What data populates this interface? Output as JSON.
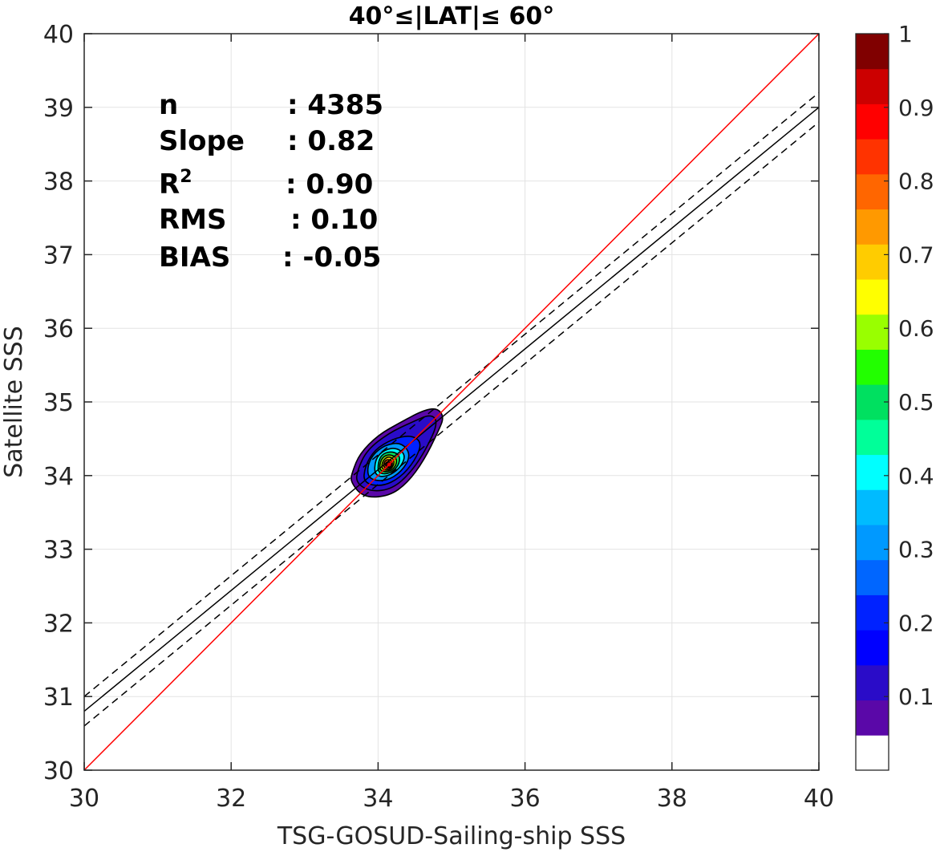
{
  "chart_data": {
    "type": "contour",
    "title": "40°≤|LAT|≤ 60°",
    "xlabel": "TSG-GOSUD-Sailing-ship SSS",
    "ylabel": "Satellite SSS",
    "xlim": [
      30,
      40
    ],
    "ylim": [
      30,
      40
    ],
    "xticks": [
      "30",
      "32",
      "34",
      "36",
      "38",
      "40"
    ],
    "yticks": [
      "30",
      "31",
      "32",
      "33",
      "34",
      "35",
      "36",
      "37",
      "38",
      "39",
      "40"
    ],
    "grid": true,
    "stats": [
      {
        "label": "n",
        "value": ": 4385"
      },
      {
        "label": "Slope",
        "value": ": 0.82"
      },
      {
        "label": "R",
        "sup": "2",
        "value": ": 0.90"
      },
      {
        "label": "RMS",
        "value": ": 0.10"
      },
      {
        "label": "BIAS",
        "value": ": -0.05"
      }
    ],
    "lines": {
      "identity": {
        "x": [
          30,
          40
        ],
        "y": [
          30,
          40
        ],
        "color": "#ff0000"
      },
      "fit": {
        "x": [
          30,
          40
        ],
        "y": [
          30.8,
          39.0
        ],
        "color": "#000000"
      },
      "fit_upper": {
        "x": [
          30,
          40
        ],
        "y": [
          31.0,
          39.2
        ],
        "color": "#000000",
        "dash": true
      },
      "fit_lower": {
        "x": [
          30,
          40
        ],
        "y": [
          30.6,
          38.8
        ],
        "color": "#000000",
        "dash": true
      }
    },
    "density_peak": {
      "x": 34.15,
      "y": 34.15
    },
    "contours": [
      {
        "level": 0.05,
        "points": [
          [
            33.62,
            33.92
          ],
          [
            33.8,
            33.7
          ],
          [
            34.15,
            33.72
          ],
          [
            34.4,
            33.9
          ],
          [
            34.62,
            34.2
          ],
          [
            34.82,
            34.6
          ],
          [
            34.9,
            34.8
          ],
          [
            34.8,
            34.92
          ],
          [
            34.6,
            34.88
          ],
          [
            34.3,
            34.72
          ],
          [
            34.0,
            34.55
          ],
          [
            33.75,
            34.3
          ],
          [
            33.65,
            34.05
          ]
        ]
      },
      {
        "level": 0.1,
        "points": [
          [
            33.7,
            33.9
          ],
          [
            33.9,
            33.78
          ],
          [
            34.2,
            33.82
          ],
          [
            34.45,
            34.05
          ],
          [
            34.65,
            34.35
          ],
          [
            34.82,
            34.72
          ],
          [
            34.72,
            34.84
          ],
          [
            34.45,
            34.72
          ],
          [
            34.15,
            34.58
          ],
          [
            33.85,
            34.35
          ],
          [
            33.72,
            34.08
          ]
        ]
      },
      {
        "level": 0.2,
        "points": [
          [
            33.8,
            33.9
          ],
          [
            34.05,
            33.85
          ],
          [
            34.3,
            33.97
          ],
          [
            34.5,
            34.2
          ],
          [
            34.6,
            34.45
          ],
          [
            34.45,
            34.55
          ],
          [
            34.2,
            34.5
          ],
          [
            33.95,
            34.35
          ],
          [
            33.82,
            34.12
          ]
        ]
      },
      {
        "level": 0.3,
        "points": [
          [
            33.88,
            33.95
          ],
          [
            34.1,
            33.92
          ],
          [
            34.32,
            34.05
          ],
          [
            34.45,
            34.28
          ],
          [
            34.32,
            34.45
          ],
          [
            34.1,
            34.42
          ],
          [
            33.92,
            34.28
          ],
          [
            33.85,
            34.1
          ]
        ]
      },
      {
        "level": 0.4,
        "points": [
          [
            33.95,
            34.0
          ],
          [
            34.12,
            33.98
          ],
          [
            34.3,
            34.1
          ],
          [
            34.38,
            34.28
          ],
          [
            34.25,
            34.38
          ],
          [
            34.08,
            34.35
          ],
          [
            33.96,
            34.22
          ]
        ]
      },
      {
        "level": 0.5,
        "points": [
          [
            34.0,
            34.03
          ],
          [
            34.15,
            34.02
          ],
          [
            34.28,
            34.13
          ],
          [
            34.3,
            34.27
          ],
          [
            34.2,
            34.33
          ],
          [
            34.06,
            34.3
          ],
          [
            34.0,
            34.18
          ]
        ]
      },
      {
        "level": 0.6,
        "points": [
          [
            34.03,
            34.06
          ],
          [
            34.16,
            34.05
          ],
          [
            34.25,
            34.14
          ],
          [
            34.25,
            34.25
          ],
          [
            34.15,
            34.29
          ],
          [
            34.06,
            34.25
          ],
          [
            34.02,
            34.15
          ]
        ]
      },
      {
        "level": 0.7,
        "points": [
          [
            34.06,
            34.08
          ],
          [
            34.16,
            34.07
          ],
          [
            34.22,
            34.15
          ],
          [
            34.21,
            34.23
          ],
          [
            34.14,
            34.26
          ],
          [
            34.08,
            34.22
          ],
          [
            34.05,
            34.15
          ]
        ]
      },
      {
        "level": 0.8,
        "points": [
          [
            34.08,
            34.1
          ],
          [
            34.16,
            34.09
          ],
          [
            34.2,
            34.15
          ],
          [
            34.18,
            34.21
          ],
          [
            34.12,
            34.22
          ],
          [
            34.08,
            34.18
          ]
        ]
      },
      {
        "level": 0.9,
        "points": [
          [
            34.11,
            34.12
          ],
          [
            34.16,
            34.11
          ],
          [
            34.18,
            34.16
          ],
          [
            34.15,
            34.19
          ],
          [
            34.11,
            34.18
          ],
          [
            34.1,
            34.15
          ]
        ]
      }
    ],
    "colorbar": {
      "range": [
        0,
        1
      ],
      "ticks": [
        "0.1",
        "0.2",
        "0.3",
        "0.4",
        "0.5",
        "0.6",
        "0.7",
        "0.8",
        "0.9",
        "1"
      ],
      "tick_values": [
        0.1,
        0.2,
        0.3,
        0.4,
        0.5,
        0.6,
        0.7,
        0.8,
        0.9,
        1.0
      ],
      "colors": [
        "#ffffff",
        "#5a08a8",
        "#2a0cc8",
        "#0000ff",
        "#0022ff",
        "#0066ff",
        "#0099ff",
        "#00bbff",
        "#00ffff",
        "#00ff99",
        "#00e060",
        "#22ff00",
        "#99ff00",
        "#ffff00",
        "#ffcc00",
        "#ff9900",
        "#ff6600",
        "#ff3300",
        "#ff0000",
        "#cc0000",
        "#800000"
      ],
      "bins": [
        0,
        0.05,
        0.1,
        0.15,
        0.2,
        0.25,
        0.3,
        0.35,
        0.4,
        0.45,
        0.5,
        0.55,
        0.6,
        0.65,
        0.7,
        0.75,
        0.8,
        0.85,
        0.9,
        0.95,
        1.0
      ]
    }
  }
}
